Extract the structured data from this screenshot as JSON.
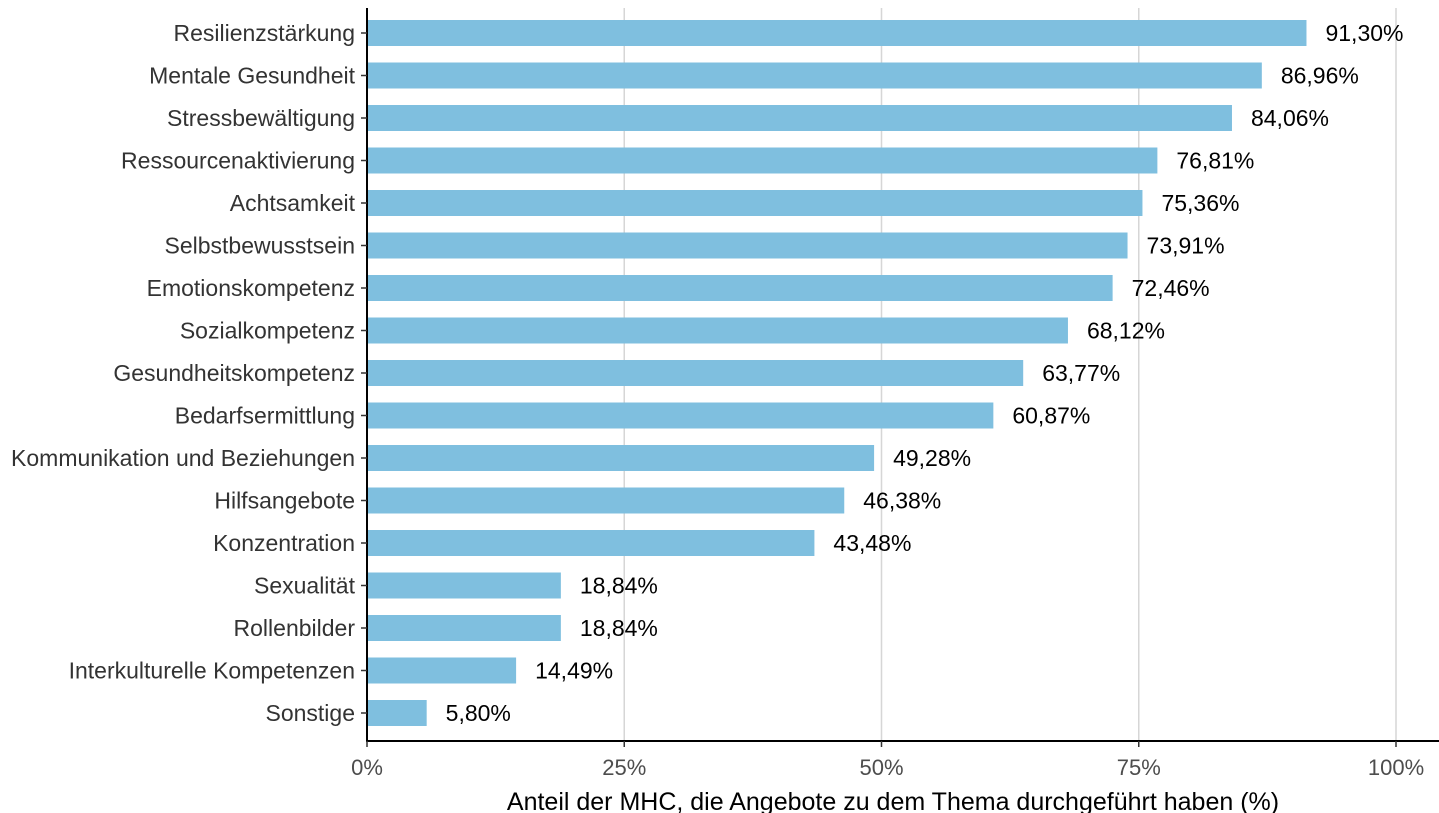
{
  "chart_data": {
    "type": "bar",
    "orientation": "horizontal",
    "title": "",
    "xlabel": "Anteil der MHC, die Angebote zu dem Thema durchgeführt haben (%)",
    "ylabel": "",
    "xlim": [
      0,
      100
    ],
    "x_ticks": [
      {
        "value": 0,
        "label": "0%"
      },
      {
        "value": 25,
        "label": "25%"
      },
      {
        "value": 50,
        "label": "50%"
      },
      {
        "value": 75,
        "label": "75%"
      },
      {
        "value": 100,
        "label": "100%"
      }
    ],
    "grid": "vertical major gridlines",
    "legend": "none",
    "bar_color": "#7fbfdf",
    "categories": [
      "Resilienzstärkung",
      "Mentale Gesundheit",
      "Stressbewältigung",
      "Ressourcenaktivierung",
      "Achtsamkeit",
      "Selbstbewusstsein",
      "Emotionskompetenz",
      "Sozialkompetenz",
      "Gesundheitskompetenz",
      "Bedarfsermittlung",
      "Kommunikation und Beziehungen",
      "Hilfsangebote",
      "Konzentration",
      "Sexualität",
      "Rollenbilder",
      "Interkulturelle Kompetenzen",
      "Sonstige"
    ],
    "values": [
      91.3,
      86.96,
      84.06,
      76.81,
      75.36,
      73.91,
      72.46,
      68.12,
      63.77,
      60.87,
      49.28,
      46.38,
      43.48,
      18.84,
      18.84,
      14.49,
      5.8
    ],
    "value_labels": [
      "91,30%",
      "86,96%",
      "84,06%",
      "76,81%",
      "75,36%",
      "73,91%",
      "72,46%",
      "68,12%",
      "63,77%",
      "60,87%",
      "49,28%",
      "46,38%",
      "43,48%",
      "18,84%",
      "18,84%",
      "14,49%",
      "5,80%"
    ]
  }
}
